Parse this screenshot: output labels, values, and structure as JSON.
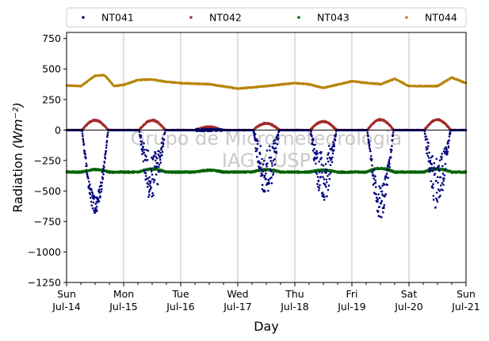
{
  "chart_data": {
    "type": "scatter",
    "title": "",
    "xlabel": "Day",
    "ylabel": "Radiation",
    "ylabel_unit": "(Wm⁻²)",
    "ylim": [
      -1250,
      800
    ],
    "yticks": [
      -1250,
      -1000,
      -750,
      -500,
      -250,
      0,
      250,
      500,
      750
    ],
    "ytick_labels": [
      "−1250",
      "−1000",
      "−750",
      "−500",
      "−250",
      "0",
      "250",
      "500",
      "750"
    ],
    "xlim": [
      "2019-07-14",
      "2019-07-21"
    ],
    "xticks": [
      {
        "day": "Sun",
        "date": "Jul-14"
      },
      {
        "day": "Mon",
        "date": "Jul-15"
      },
      {
        "day": "Tue",
        "date": "Jul-16"
      },
      {
        "day": "Wed",
        "date": "Jul-17"
      },
      {
        "day": "Thu",
        "date": "Jul-18"
      },
      {
        "day": "Fri",
        "date": "Jul-19"
      },
      {
        "day": "Sat",
        "date": "Jul-20"
      },
      {
        "day": "Sun",
        "date": "Jul-21"
      }
    ],
    "grid": "vertical",
    "legend_position": "top",
    "watermark": [
      "Grupo de Micrometeorologia",
      "IAG / USP"
    ],
    "series": [
      {
        "name": "NT041",
        "color": "#00007f",
        "baseline": -2,
        "daily_min": [
          -680,
          -600,
          0,
          -550,
          -600,
          -730,
          -660
        ]
      },
      {
        "name": "NT042",
        "color": "#a52a2a",
        "baseline": 0,
        "daily_max": [
          80,
          80,
          25,
          55,
          70,
          85,
          85
        ]
      },
      {
        "name": "NT043",
        "color": "#006400",
        "baseline": -345,
        "daily_peak": [
          -325,
          -320,
          -330,
          -325,
          -330,
          -315,
          -320
        ]
      },
      {
        "name": "NT044",
        "color": "#b8860b",
        "x": [
          "2019-07-14 00:00",
          "2019-07-14 06:00",
          "2019-07-14 12:00",
          "2019-07-14 16:00",
          "2019-07-14 20:00",
          "2019-07-15 00:00",
          "2019-07-15 06:00",
          "2019-07-15 12:00",
          "2019-07-15 18:00",
          "2019-07-16 00:00",
          "2019-07-16 12:00",
          "2019-07-17 00:00",
          "2019-07-17 12:00",
          "2019-07-18 00:00",
          "2019-07-18 06:00",
          "2019-07-18 12:00",
          "2019-07-19 00:00",
          "2019-07-19 12:00",
          "2019-07-19 18:00",
          "2019-07-20 00:00",
          "2019-07-20 12:00",
          "2019-07-20 18:00",
          "2019-07-21 00:00"
        ],
        "values": [
          365,
          360,
          445,
          450,
          360,
          370,
          410,
          415,
          395,
          385,
          375,
          340,
          360,
          385,
          375,
          345,
          400,
          375,
          420,
          360,
          360,
          430,
          385
        ]
      }
    ]
  }
}
